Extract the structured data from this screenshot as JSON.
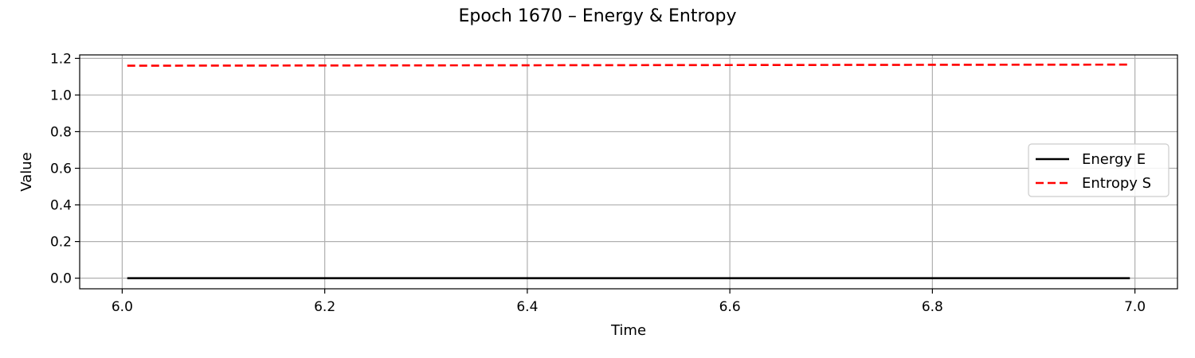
{
  "chart_data": {
    "type": "line",
    "title": "Epoch 1670 – Energy & Entropy",
    "xlabel": "Time",
    "ylabel": "Value",
    "xlim": [
      5.958,
      7.042
    ],
    "ylim": [
      -0.058,
      1.219
    ],
    "x_ticks": [
      6.0,
      6.2,
      6.4,
      6.6,
      6.8,
      7.0
    ],
    "x_tick_labels": [
      "6.0",
      "6.2",
      "6.4",
      "6.6",
      "6.8",
      "7.0"
    ],
    "y_ticks": [
      0.0,
      0.2,
      0.4,
      0.6,
      0.8,
      1.0,
      1.2
    ],
    "y_tick_labels": [
      "0.0",
      "0.2",
      "0.4",
      "0.6",
      "0.8",
      "1.0",
      "1.2"
    ],
    "grid": true,
    "legend_position": "center-right",
    "series": [
      {
        "name": "Energy E",
        "color": "#000000",
        "style": "solid",
        "x": [
          6.005,
          6.1,
          6.2,
          6.3,
          6.4,
          6.5,
          6.6,
          6.7,
          6.8,
          6.9,
          6.995
        ],
        "y": [
          0.0,
          0.0,
          0.0,
          0.0,
          0.0,
          0.0,
          0.0,
          0.0,
          0.0,
          0.0,
          0.0
        ]
      },
      {
        "name": "Entropy S",
        "color": "#ff0000",
        "style": "dashed",
        "x": [
          6.005,
          6.1,
          6.2,
          6.3,
          6.4,
          6.5,
          6.6,
          6.7,
          6.8,
          6.9,
          6.995
        ],
        "y": [
          1.16,
          1.1606,
          1.1612,
          1.1618,
          1.1624,
          1.163,
          1.1636,
          1.1642,
          1.1648,
          1.1654,
          1.166
        ]
      }
    ]
  }
}
